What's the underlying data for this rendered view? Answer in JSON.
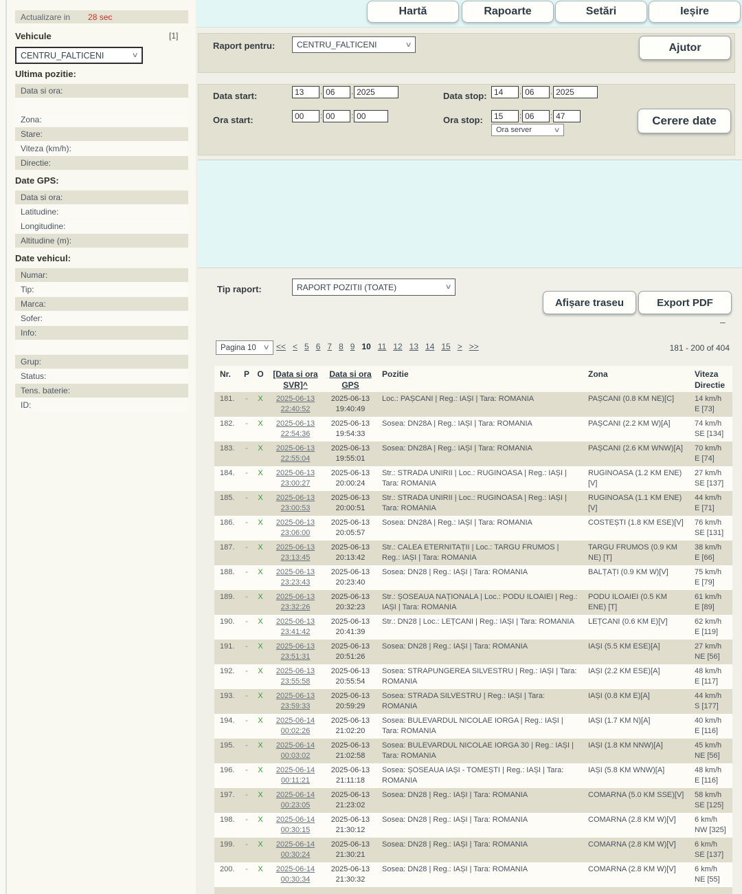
{
  "colors": {
    "countdown_red": "#c3362b",
    "x_green": "#2f9e2f",
    "cyan_bg": "#e1f6f5",
    "band_beige": "#e3e1d2",
    "row_beige": "#e0ddcd"
  },
  "update_bar": {
    "label": "Actualizare in",
    "countdown": "28 sec"
  },
  "tabs": [
    {
      "label": "Hartă"
    },
    {
      "label": "Rapoarte"
    },
    {
      "label": "Setări"
    },
    {
      "label": "Ieșire"
    }
  ],
  "sidebar": {
    "vehicule_label": "Vehicule",
    "vehicule_count": "[1]",
    "vehicle_selected": "CENTRU_FALTICENI",
    "sections": [
      {
        "title": "Ultima pozitie:",
        "rows": [
          {
            "label": "Data si ora:",
            "shaded": true
          },
          {
            "label": "",
            "shaded": false
          },
          {
            "label": "Zona:",
            "shaded": false
          },
          {
            "label": "Stare:",
            "shaded": true
          },
          {
            "label": "Viteza (km/h):",
            "shaded": false
          },
          {
            "label": "Directie:",
            "shaded": true
          }
        ]
      },
      {
        "title": "Date GPS:",
        "rows": [
          {
            "label": "Data si ora:",
            "shaded": true
          },
          {
            "label": "Latitudine:",
            "shaded": false
          },
          {
            "label": "Longitudine:",
            "shaded": false
          },
          {
            "label": "Altitudine (m):",
            "shaded": true
          }
        ]
      },
      {
        "title": "Date vehicul:",
        "rows": [
          {
            "label": "Numar:",
            "shaded": true
          },
          {
            "label": "Tip:",
            "shaded": false
          },
          {
            "label": "Marca:",
            "shaded": true
          },
          {
            "label": "Sofer:",
            "shaded": false
          },
          {
            "label": "Info:",
            "shaded": true
          },
          {
            "label": "",
            "shaded": false
          },
          {
            "label": "Grup:",
            "shaded": true
          },
          {
            "label": "Status:",
            "shaded": false
          },
          {
            "label": "Tens. baterie:",
            "shaded": true
          },
          {
            "label": "ID:",
            "shaded": false
          }
        ]
      }
    ]
  },
  "form": {
    "raport_pentru_label": "Raport pentru:",
    "raport_pentru_value": "CENTRU_FALTICENI",
    "ajutor_label": "Ajutor",
    "data_start_label": "Data start:",
    "data_start": [
      "13",
      "06",
      "2025"
    ],
    "ora_start_label": "Ora start:",
    "ora_start": [
      "00",
      "00",
      "00"
    ],
    "data_stop_label": "Data stop:",
    "data_stop": [
      "14",
      "06",
      "2025"
    ],
    "ora_stop_label": "Ora stop:",
    "ora_stop": [
      "15",
      "06",
      "47"
    ],
    "ora_server_value": "Ora server",
    "cerere_date_label": "Cerere date"
  },
  "report": {
    "tip_raport_label": "Tip raport:",
    "tip_raport_value": "RAPORT POZITII (TOATE)",
    "afisare_traseu_label": "Afișare traseu",
    "export_pdf_label": "Export PDF",
    "collapse_glyph": "–",
    "pagination": {
      "selector": "Pagina 10",
      "pages": [
        "<<",
        "<",
        "5",
        "6",
        "7",
        "8",
        "9",
        "10",
        "11",
        "12",
        "13",
        "14",
        "15",
        ">",
        ">>"
      ],
      "current": "10",
      "range_text": "181 - 200 of 404"
    }
  },
  "table": {
    "headers": {
      "nr": "Nr.",
      "p": "P",
      "o": "O",
      "svr": "[Data si ora SVR]^",
      "gps": "Data si ora GPS",
      "pozitie": "Pozitie",
      "zona": "Zona",
      "viteza": "Viteza",
      "directie": "Directie"
    },
    "rows": [
      {
        "nr": "181.",
        "p": "-",
        "o": "X",
        "svr_d": "2025-06-13",
        "svr_t": "22:40:52",
        "gps_d": "2025-06-13",
        "gps_t": "19:40:49",
        "pozitie": "Loc.: PAȘCANI |  Reg.: IAȘI |  Tara: ROMANIA",
        "zona": "PAȘCANI (0.8 KM NE)[C]",
        "viteza": "14 km/h",
        "directie": "E  [73]"
      },
      {
        "nr": "182.",
        "p": "-",
        "o": "X",
        "svr_d": "2025-06-13",
        "svr_t": "22:54:36",
        "gps_d": "2025-06-13",
        "gps_t": "19:54:33",
        "pozitie": "Sosea: DN28A |  Reg.: IAȘI |  Tara: ROMANIA",
        "zona": "PAȘCANI (2.2 KM W)[A]",
        "viteza": "74 km/h",
        "directie": "SE  [134]"
      },
      {
        "nr": "183.",
        "p": "-",
        "o": "X",
        "svr_d": "2025-06-13",
        "svr_t": "22:55:04",
        "gps_d": "2025-06-13",
        "gps_t": "19:55:01",
        "pozitie": "Sosea: DN28A |  Reg.: IAȘI |  Tara: ROMANIA",
        "zona": "PAȘCANI (2.6 KM WNW)[A]",
        "viteza": "70 km/h",
        "directie": "E  [74]"
      },
      {
        "nr": "184.",
        "p": "-",
        "o": "X",
        "svr_d": "2025-06-13",
        "svr_t": "23:00:27",
        "gps_d": "2025-06-13",
        "gps_t": "20:00:24",
        "pozitie": "Str.: STRADA UNIRII |  Loc.: RUGINOASA |  Reg.: IAȘI |  Tara: ROMANIA",
        "zona": "RUGINOASA (1.2 KM ENE)[V]",
        "viteza": "27 km/h",
        "directie": "SE  [137]"
      },
      {
        "nr": "185.",
        "p": "-",
        "o": "X",
        "svr_d": "2025-06-13",
        "svr_t": "23:00:53",
        "gps_d": "2025-06-13",
        "gps_t": "20:00:51",
        "pozitie": "Str.: STRADA UNIRII |  Loc.: RUGINOASA |  Reg.: IAȘI |  Tara: ROMANIA",
        "zona": "RUGINOASA (1.1 KM ENE)[V]",
        "viteza": "44 km/h",
        "directie": "E  [71]"
      },
      {
        "nr": "186.",
        "p": "-",
        "o": "X",
        "svr_d": "2025-06-13",
        "svr_t": "23:06:00",
        "gps_d": "2025-06-13",
        "gps_t": "20:05:57",
        "pozitie": "Sosea: DN28A |  Reg.: IAȘI |  Tara: ROMANIA",
        "zona": "COSTEȘTI (1.8 KM ESE)[V]",
        "viteza": "76 km/h",
        "directie": "SE  [131]"
      },
      {
        "nr": "187.",
        "p": "-",
        "o": "X",
        "svr_d": "2025-06-13",
        "svr_t": "23:13:45",
        "gps_d": "2025-06-13",
        "gps_t": "20:13:42",
        "pozitie": "Str.: CALEA ETERNITAȚII |  Loc.: TARGU FRUMOS |  Reg.: IAȘI |  Tara: ROMANIA",
        "zona": "TARGU FRUMOS (0.9 KM NE) [T]",
        "viteza": "38 km/h",
        "directie": "E  [66]"
      },
      {
        "nr": "188.",
        "p": "-",
        "o": "X",
        "svr_d": "2025-06-13",
        "svr_t": "23:23:43",
        "gps_d": "2025-06-13",
        "gps_t": "20:23:40",
        "pozitie": "Sosea: DN28 |  Reg.: IAȘI |  Tara: ROMANIA",
        "zona": "BALȚAȚI (0.9 KM W)[V]",
        "viteza": "75 km/h",
        "directie": "E  [79]"
      },
      {
        "nr": "189.",
        "p": "-",
        "o": "X",
        "svr_d": "2025-06-13",
        "svr_t": "23:32:26",
        "gps_d": "2025-06-13",
        "gps_t": "20:32:23",
        "pozitie": "Str.: ȘOSEAUA NAȚIONALA |  Loc.: PODU ILOAIEI |  Reg.: IAȘI |  Tara: ROMANIA",
        "zona": "PODU ILOAIEI (0.5 KM ENE) [T]",
        "viteza": "61 km/h",
        "directie": "E  [89]"
      },
      {
        "nr": "190.",
        "p": "-",
        "o": "X",
        "svr_d": "2025-06-13",
        "svr_t": "23:41:42",
        "gps_d": "2025-06-13",
        "gps_t": "20:41:39",
        "pozitie": "Str.: DN28 |  Loc.: LEȚCANI |  Reg.: IAȘI |  Tara: ROMANIA",
        "zona": "LEȚCANI (0.6 KM E)[V]",
        "viteza": "62 km/h",
        "directie": "E  [119]"
      },
      {
        "nr": "191.",
        "p": "-",
        "o": "X",
        "svr_d": "2025-06-13",
        "svr_t": "23:51:31",
        "gps_d": "2025-06-13",
        "gps_t": "20:51:26",
        "pozitie": "Sosea: DN28 |  Reg.: IAȘI |  Tara: ROMANIA",
        "zona": "IAȘI (5.5 KM ESE)[A]",
        "viteza": "27 km/h",
        "directie": "NE  [56]"
      },
      {
        "nr": "192.",
        "p": "-",
        "o": "X",
        "svr_d": "2025-06-13",
        "svr_t": "23:55:58",
        "gps_d": "2025-06-13",
        "gps_t": "20:55:54",
        "pozitie": "Sosea: STRAPUNGEREA SILVESTRU |  Reg.: IAȘI |  Tara: ROMANIA",
        "zona": "IAȘI (2.2 KM ESE)[A]",
        "viteza": "48 km/h",
        "directie": "E  [117]"
      },
      {
        "nr": "193.",
        "p": "-",
        "o": "X",
        "svr_d": "2025-06-13",
        "svr_t": "23:59:33",
        "gps_d": "2025-06-13",
        "gps_t": "20:59:29",
        "pozitie": "Sosea: STRADA SILVESTRU |  Reg.: IAȘI |  Tara: ROMANIA",
        "zona": "IAȘI (0.8 KM E)[A]",
        "viteza": "44 km/h",
        "directie": "S  [177]"
      },
      {
        "nr": "194.",
        "p": "-",
        "o": "X",
        "svr_d": "2025-06-14",
        "svr_t": "00:02:26",
        "gps_d": "2025-06-13",
        "gps_t": "21:02:20",
        "pozitie": "Sosea: BULEVARDUL NICOLAE IORGA |  Reg.: IAȘI |  Tara: ROMANIA",
        "zona": "IAȘI (1.7 KM N)[A]",
        "viteza": "40 km/h",
        "directie": "E  [116]"
      },
      {
        "nr": "195.",
        "p": "-",
        "o": "X",
        "svr_d": "2025-06-14",
        "svr_t": "00:03:02",
        "gps_d": "2025-06-13",
        "gps_t": "21:02:58",
        "pozitie": "Sosea: BULEVARDUL NICOLAE IORGA 30 |  Reg.: IAȘI |  Tara: ROMANIA",
        "zona": "IAȘI (1.8 KM NNW)[A]",
        "viteza": "45 km/h",
        "directie": "NE  [56]"
      },
      {
        "nr": "196.",
        "p": "-",
        "o": "X",
        "svr_d": "2025-06-14",
        "svr_t": "00:11:21",
        "gps_d": "2025-06-13",
        "gps_t": "21:11:18",
        "pozitie": "Sosea: ȘOSEAUA IAȘI - TOMEȘTI |  Reg.: IAȘI |  Tara: ROMANIA",
        "zona": "IAȘI (5.8 KM WNW)[A]",
        "viteza": "48 km/h",
        "directie": "E  [116]"
      },
      {
        "nr": "197.",
        "p": "-",
        "o": "X",
        "svr_d": "2025-06-14",
        "svr_t": "00:23:05",
        "gps_d": "2025-06-13",
        "gps_t": "21:23:02",
        "pozitie": "Sosea: DN28 |  Reg.: IAȘI |  Tara: ROMANIA",
        "zona": "COMARNA (5.0 KM SSE)[V]",
        "viteza": "58 km/h",
        "directie": "SE  [125]"
      },
      {
        "nr": "198.",
        "p": "-",
        "o": "X",
        "svr_d": "2025-06-14",
        "svr_t": "00:30:15",
        "gps_d": "2025-06-13",
        "gps_t": "21:30:12",
        "pozitie": "Sosea: DN28 |  Reg.: IAȘI |  Tara: ROMANIA",
        "zona": "COMARNA (2.8 KM W)[V]",
        "viteza": "6 km/h",
        "directie": "NW  [325]"
      },
      {
        "nr": "199.",
        "p": "-",
        "o": "X",
        "svr_d": "2025-06-14",
        "svr_t": "00:30:24",
        "gps_d": "2025-06-13",
        "gps_t": "21:30:21",
        "pozitie": "Sosea: DN28 |  Reg.: IAȘI |  Tara: ROMANIA",
        "zona": "COMARNA (2.8 KM W)[V]",
        "viteza": "6 km/h",
        "directie": "SE  [137]"
      },
      {
        "nr": "200.",
        "p": "-",
        "o": "X",
        "svr_d": "2025-06-14",
        "svr_t": "00:30:34",
        "gps_d": "2025-06-13",
        "gps_t": "21:30:32",
        "pozitie": "Sosea: DN28 |  Reg.: IAȘI |  Tara: ROMANIA",
        "zona": "COMARNA (2.8 KM W)[V]",
        "viteza": "6 km/h",
        "directie": "NE  [55]"
      }
    ]
  }
}
